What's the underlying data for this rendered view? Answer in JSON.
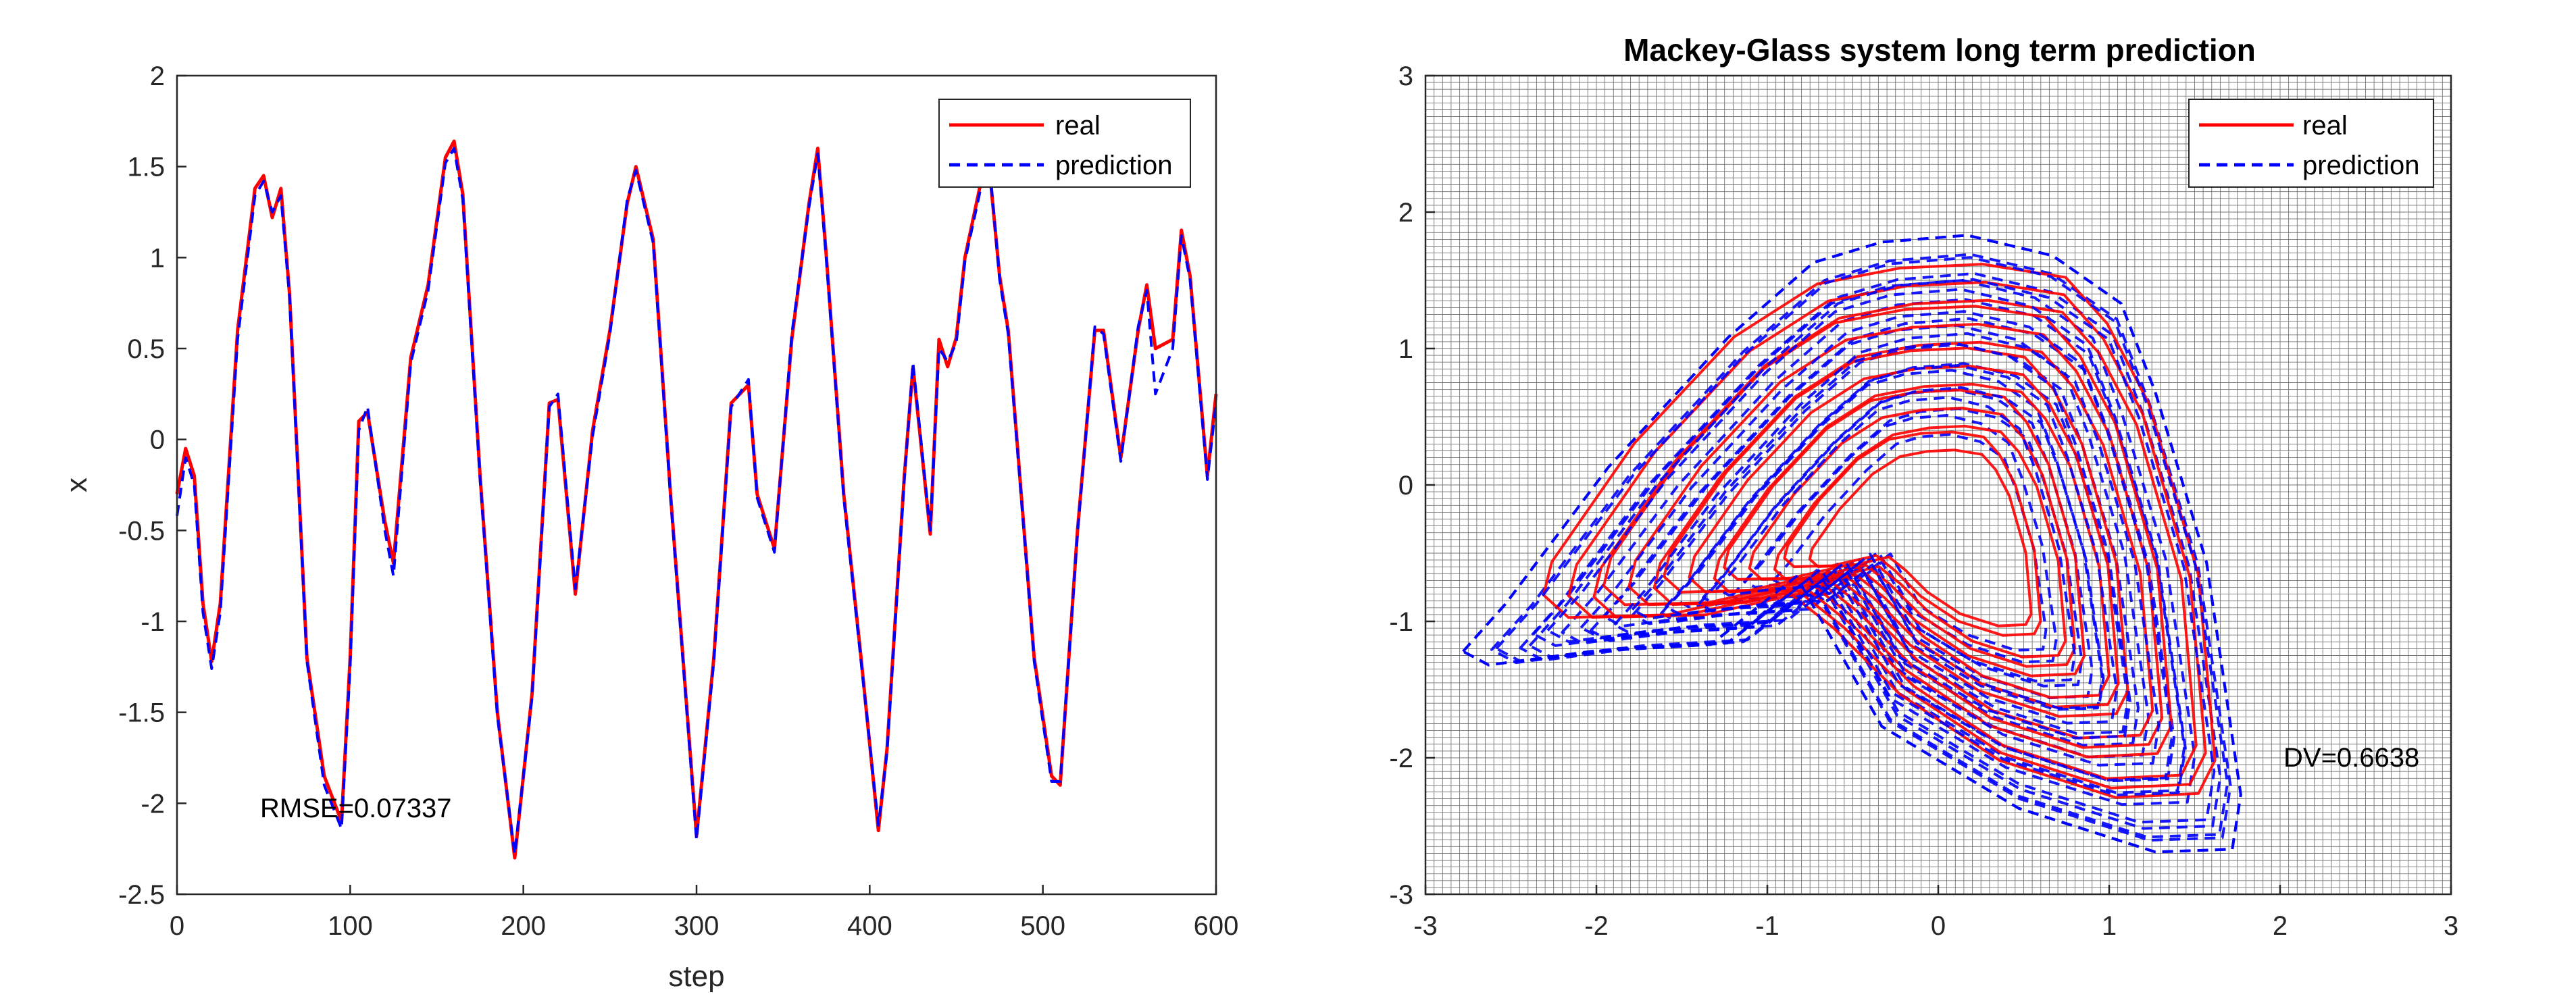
{
  "colors": {
    "real": "#ff0000",
    "prediction": "#0000ff",
    "axis": "#262626",
    "grid": "#000000"
  },
  "chart_data": [
    {
      "type": "line",
      "title": "",
      "xlabel": "step",
      "ylabel": "x",
      "xlim": [
        0,
        600
      ],
      "ylim": [
        -2.5,
        2
      ],
      "xticks": [
        "0",
        "100",
        "200",
        "300",
        "400",
        "500",
        "600"
      ],
      "yticks": [
        "2",
        "1.5",
        "1",
        "0.5",
        "0",
        "-0.5",
        "-1",
        "-1.5",
        "-2",
        "-2.5"
      ],
      "annotation": "RMSE=0.07337",
      "legend": {
        "position": "top-right",
        "entries": [
          "real",
          "prediction"
        ]
      },
      "grid": false,
      "series": [
        {
          "name": "real",
          "style": "solid",
          "x": [
            0,
            5,
            10,
            15,
            20,
            25,
            35,
            45,
            50,
            55,
            60,
            65,
            75,
            85,
            95,
            100,
            105,
            110,
            120,
            125,
            135,
            145,
            155,
            160,
            165,
            175,
            185,
            195,
            205,
            215,
            220,
            230,
            240,
            250,
            260,
            265,
            275,
            285,
            300,
            310,
            320,
            330,
            335,
            345,
            355,
            365,
            370,
            375,
            385,
            395,
            405,
            410,
            420,
            425,
            435,
            440,
            445,
            450,
            455,
            465,
            470,
            475,
            480,
            485,
            495,
            505,
            510,
            520,
            530,
            535,
            545,
            555,
            560,
            565,
            575,
            580,
            585,
            595,
            600
          ],
          "y": [
            -0.3,
            -0.05,
            -0.2,
            -0.9,
            -1.22,
            -0.9,
            0.6,
            1.38,
            1.45,
            1.22,
            1.38,
            0.8,
            -1.2,
            -1.85,
            -2.1,
            -1.2,
            0.1,
            0.15,
            -0.45,
            -0.68,
            0.45,
            0.85,
            1.55,
            1.64,
            1.35,
            -0.2,
            -1.5,
            -2.3,
            -1.4,
            0.2,
            0.22,
            -0.85,
            0.05,
            0.6,
            1.3,
            1.5,
            1.1,
            -0.3,
            -2.18,
            -1.2,
            0.2,
            0.3,
            -0.3,
            -0.6,
            0.55,
            1.3,
            1.6,
            1.0,
            -0.3,
            -1.2,
            -2.15,
            -1.7,
            -0.2,
            0.4,
            -0.52,
            0.55,
            0.4,
            0.56,
            1.0,
            1.45,
            1.4,
            0.9,
            0.6,
            0.0,
            -1.2,
            -1.85,
            -1.9,
            -0.5,
            0.6,
            0.6,
            -0.1,
            0.6,
            0.85,
            0.5,
            0.55,
            1.15,
            0.9,
            -0.2,
            0.25
          ]
        },
        {
          "name": "prediction",
          "style": "dashed",
          "x": [
            0,
            5,
            10,
            15,
            20,
            25,
            35,
            45,
            50,
            55,
            60,
            65,
            75,
            85,
            95,
            100,
            105,
            110,
            120,
            125,
            135,
            145,
            155,
            160,
            165,
            175,
            185,
            195,
            205,
            215,
            220,
            230,
            240,
            250,
            260,
            265,
            275,
            285,
            300,
            310,
            320,
            330,
            335,
            345,
            355,
            365,
            370,
            375,
            385,
            395,
            405,
            410,
            420,
            425,
            435,
            440,
            445,
            450,
            455,
            465,
            470,
            475,
            480,
            485,
            495,
            505,
            510,
            520,
            530,
            535,
            545,
            555,
            560,
            565,
            575,
            580,
            585,
            595,
            600
          ],
          "y": [
            -0.42,
            -0.1,
            -0.25,
            -0.95,
            -1.26,
            -0.95,
            0.55,
            1.34,
            1.42,
            1.25,
            1.34,
            0.78,
            -1.22,
            -1.9,
            -2.14,
            -1.25,
            0.05,
            0.18,
            -0.5,
            -0.75,
            0.42,
            0.82,
            1.52,
            1.6,
            1.32,
            -0.22,
            -1.52,
            -2.28,
            -1.42,
            0.18,
            0.25,
            -0.82,
            0.02,
            0.58,
            1.32,
            1.48,
            1.08,
            -0.32,
            -2.2,
            -1.22,
            0.18,
            0.33,
            -0.32,
            -0.62,
            0.58,
            1.28,
            1.57,
            0.98,
            -0.32,
            -1.22,
            -2.12,
            -1.72,
            -0.22,
            0.42,
            -0.5,
            0.5,
            0.43,
            0.53,
            0.98,
            1.42,
            1.42,
            0.88,
            0.58,
            -0.02,
            -1.22,
            -1.88,
            -1.88,
            -0.52,
            0.62,
            0.58,
            -0.12,
            0.62,
            0.82,
            0.25,
            0.5,
            1.12,
            0.88,
            -0.22,
            0.2
          ]
        }
      ]
    },
    {
      "type": "line",
      "title": "Mackey-Glass system long term prediction",
      "xlabel": "",
      "ylabel": "",
      "xlim": [
        -3,
        3
      ],
      "ylim": [
        -3,
        3
      ],
      "xticks": [
        "-3",
        "-2",
        "-1",
        "0",
        "1",
        "2",
        "3"
      ],
      "yticks": [
        "3",
        "2",
        "1",
        "0",
        "-1",
        "-2",
        "-3"
      ],
      "annotation": "DV=0.6638",
      "legend": {
        "position": "top-right",
        "entries": [
          "real",
          "prediction"
        ]
      },
      "grid": true,
      "series": [
        {
          "name": "real",
          "style": "solid",
          "outline_x": [
            -2.35,
            -2.3,
            -1.8,
            -1.2,
            -0.7,
            -0.2,
            0.3,
            0.8,
            1.05,
            1.3,
            1.6,
            1.7,
            1.6,
            1.1,
            0.4,
            -0.2,
            -0.6,
            -0.9,
            -1.6,
            -2.2,
            -2.35
          ],
          "outline_y": [
            -0.85,
            -0.6,
            0.3,
            1.1,
            1.5,
            1.62,
            1.65,
            1.55,
            1.2,
            0.6,
            -0.7,
            -2.1,
            -2.35,
            -2.38,
            -2.1,
            -1.6,
            -1.1,
            -0.8,
            -1.0,
            -1.02,
            -0.85
          ]
        },
        {
          "name": "prediction",
          "style": "dashed",
          "outline_x": [
            -2.75,
            -2.5,
            -1.9,
            -1.2,
            -0.7,
            -0.3,
            0.2,
            0.7,
            1.1,
            1.3,
            1.6,
            1.8,
            1.75,
            1.3,
            0.5,
            -0.3,
            -0.8,
            -1.3,
            -2.0,
            -2.6,
            -2.75
          ],
          "outline_y": [
            -1.25,
            -0.9,
            0.1,
            1.05,
            1.6,
            1.75,
            1.8,
            1.65,
            1.3,
            0.65,
            -0.6,
            -2.3,
            -2.7,
            -2.72,
            -2.4,
            -1.8,
            -0.7,
            -1.2,
            -1.25,
            -1.35,
            -1.25
          ]
        }
      ]
    }
  ]
}
